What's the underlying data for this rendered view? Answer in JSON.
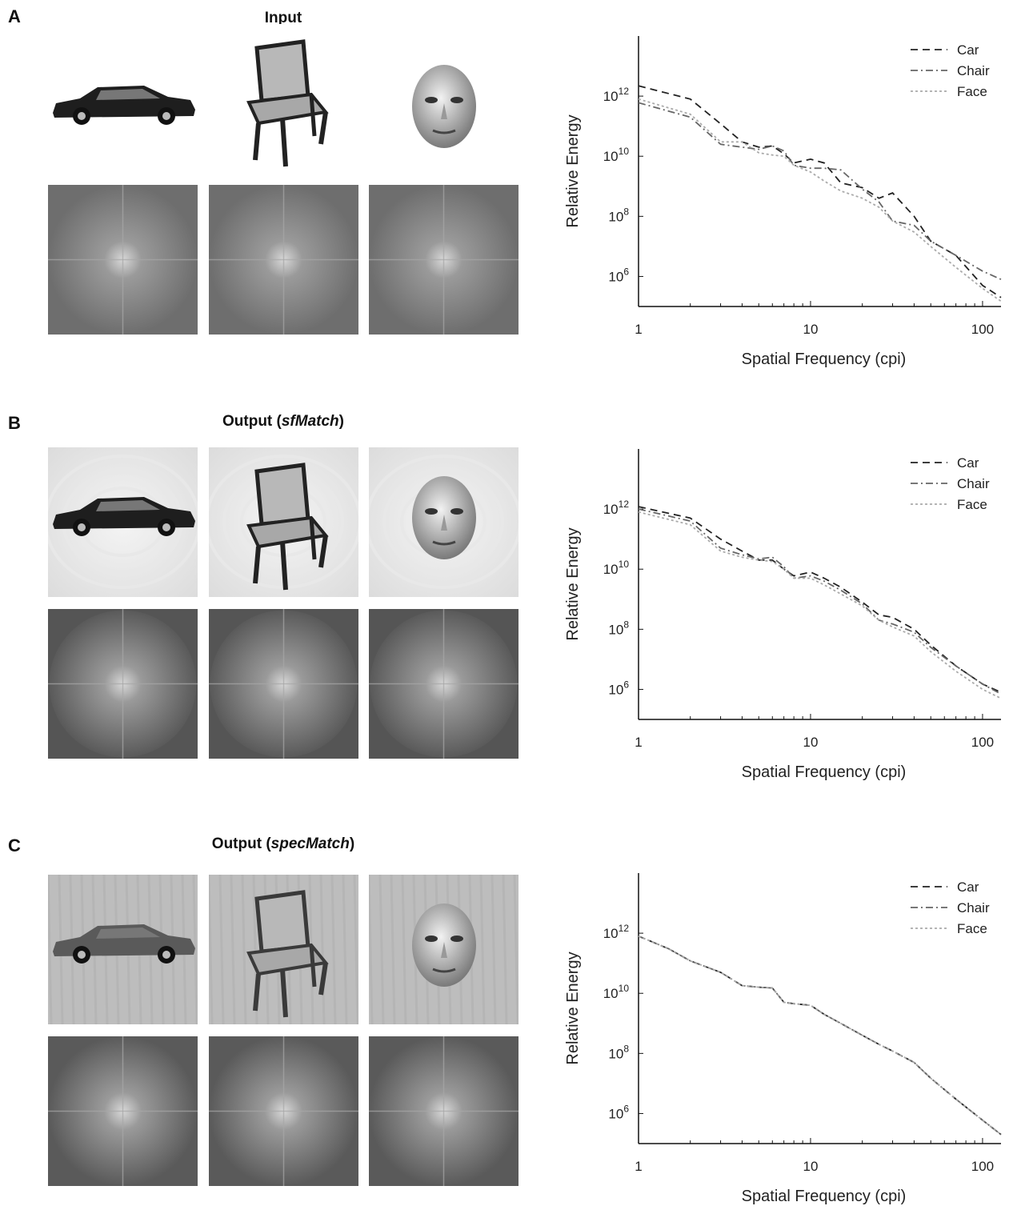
{
  "panels": [
    {
      "letter": "A",
      "title_main": "Input",
      "title_paren_open": "",
      "title_italic": "",
      "title_paren_close": "",
      "image_style": "input",
      "spectrum_style": "input",
      "images": [
        {
          "label": "car",
          "icon": "car-photo-icon"
        },
        {
          "label": "chair",
          "icon": "chair-photo-icon"
        },
        {
          "label": "face",
          "icon": "face-photo-icon"
        }
      ]
    },
    {
      "letter": "B",
      "title_main": "Output ",
      "title_paren_open": "(",
      "title_italic": "sfMatch",
      "title_paren_close": ")",
      "image_style": "sfmatch",
      "spectrum_style": "circular",
      "images": [
        {
          "label": "car",
          "icon": "car-photo-icon"
        },
        {
          "label": "chair",
          "icon": "chair-photo-icon"
        },
        {
          "label": "face",
          "icon": "face-photo-icon"
        }
      ]
    },
    {
      "letter": "C",
      "title_main": "Output ",
      "title_paren_open": "(",
      "title_italic": "specMatch",
      "title_paren_close": ")",
      "image_style": "specmatch",
      "spectrum_style": "matched",
      "images": [
        {
          "label": "car",
          "icon": "car-photo-icon"
        },
        {
          "label": "chair",
          "icon": "chair-photo-icon"
        },
        {
          "label": "face",
          "icon": "face-photo-icon"
        }
      ]
    }
  ],
  "chart_data": [
    {
      "type": "line",
      "panel": "A",
      "xlabel": "Spatial Frequency (cpi)",
      "ylabel": "Relative Energy",
      "xscale": "log",
      "yscale": "log",
      "xlim": [
        1,
        128
      ],
      "ylim": [
        100000,
        100000000000000
      ],
      "xticks": [
        {
          "value": 1,
          "label": "1"
        },
        {
          "value": 10,
          "label": "10"
        },
        {
          "value": 100,
          "label": "100"
        }
      ],
      "yticks": [
        {
          "value": 1000000,
          "base": "10",
          "exp": "6"
        },
        {
          "value": 100000000,
          "base": "10",
          "exp": "8"
        },
        {
          "value": 10000000000,
          "base": "10",
          "exp": "10"
        },
        {
          "value": 1000000000000,
          "base": "10",
          "exp": "12"
        }
      ],
      "legend_position": "top-right",
      "series": [
        {
          "name": "Car",
          "color": "#222222",
          "dash": "long-dash",
          "x": [
            1,
            2,
            3,
            4,
            5,
            6,
            7,
            8,
            10,
            12,
            15,
            20,
            25,
            30,
            40,
            50,
            70,
            100,
            128
          ],
          "y": [
            2200000000000.0,
            800000000000.0,
            120000000000.0,
            30000000000.0,
            20000000000.0,
            22000000000.0,
            12000000000.0,
            6000000000.0,
            8000000000.0,
            6000000000.0,
            1300000000.0,
            900000000.0,
            400000000.0,
            600000000.0,
            100000000.0,
            15000000.0,
            5000000.0,
            500000.0,
            200000.0
          ]
        },
        {
          "name": "Chair",
          "color": "#666666",
          "dash": "dash-dot",
          "x": [
            1,
            2,
            3,
            4,
            5,
            6,
            7,
            8,
            10,
            12,
            15,
            20,
            25,
            30,
            40,
            50,
            70,
            100,
            128
          ],
          "y": [
            600000000000.0,
            200000000000.0,
            25000000000.0,
            20000000000.0,
            17000000000.0,
            22000000000.0,
            15000000000.0,
            5000000000.0,
            4000000000.0,
            4000000000.0,
            3500000000.0,
            800000000.0,
            300000000.0,
            70000000.0,
            50000000.0,
            15000000.0,
            5000000.0,
            1500000.0,
            800000.0
          ]
        },
        {
          "name": "Face",
          "color": "#aaaaaa",
          "dash": "dot",
          "x": [
            1,
            2,
            3,
            4,
            5,
            6,
            7,
            8,
            10,
            12,
            15,
            20,
            25,
            30,
            40,
            50,
            70,
            100,
            128
          ],
          "y": [
            800000000000.0,
            250000000000.0,
            30000000000.0,
            30000000000.0,
            13000000000.0,
            11000000000.0,
            10000000000.0,
            5000000000.0,
            3000000000.0,
            1500000000.0,
            700000000.0,
            400000000.0,
            200000000.0,
            70000000.0,
            30000000.0,
            10000000.0,
            2000000.0,
            400000.0,
            150000.0
          ]
        }
      ]
    },
    {
      "type": "line",
      "panel": "B",
      "xlabel": "Spatial Frequency (cpi)",
      "ylabel": "Relative Energy",
      "xscale": "log",
      "yscale": "log",
      "xlim": [
        1,
        128
      ],
      "ylim": [
        100000,
        100000000000000
      ],
      "xticks": [
        {
          "value": 1,
          "label": "1"
        },
        {
          "value": 10,
          "label": "10"
        },
        {
          "value": 100,
          "label": "100"
        }
      ],
      "yticks": [
        {
          "value": 1000000,
          "base": "10",
          "exp": "6"
        },
        {
          "value": 100000000,
          "base": "10",
          "exp": "8"
        },
        {
          "value": 10000000000,
          "base": "10",
          "exp": "10"
        },
        {
          "value": 1000000000000,
          "base": "10",
          "exp": "12"
        }
      ],
      "legend_position": "top-right",
      "series": [
        {
          "name": "Car",
          "color": "#222222",
          "dash": "long-dash",
          "x": [
            1,
            2,
            3,
            4,
            5,
            6,
            7,
            8,
            10,
            12,
            15,
            20,
            25,
            30,
            40,
            50,
            70,
            100,
            128
          ],
          "y": [
            1200000000000.0,
            500000000000.0,
            100000000000.0,
            40000000000.0,
            20000000000.0,
            20000000000.0,
            10000000000.0,
            6000000000.0,
            8000000000.0,
            5000000000.0,
            2500000000.0,
            800000000.0,
            300000000.0,
            250000000.0,
            100000000.0,
            30000000.0,
            6000000.0,
            1500000.0,
            800000.0
          ]
        },
        {
          "name": "Chair",
          "color": "#666666",
          "dash": "dash-dot",
          "x": [
            1,
            2,
            3,
            4,
            5,
            6,
            7,
            8,
            10,
            12,
            15,
            20,
            25,
            30,
            40,
            50,
            70,
            100,
            128
          ],
          "y": [
            1000000000000.0,
            400000000000.0,
            50000000000.0,
            30000000000.0,
            22000000000.0,
            25000000000.0,
            12000000000.0,
            5000000000.0,
            6000000000.0,
            4000000000.0,
            2000000000.0,
            700000000.0,
            200000000.0,
            150000000.0,
            80000000.0,
            25000000.0,
            6000000.0,
            1500000.0,
            700000.0
          ]
        },
        {
          "name": "Face",
          "color": "#aaaaaa",
          "dash": "dot",
          "x": [
            1,
            2,
            3,
            4,
            5,
            6,
            7,
            8,
            10,
            12,
            15,
            20,
            25,
            30,
            40,
            50,
            70,
            100,
            128
          ],
          "y": [
            800000000000.0,
            300000000000.0,
            40000000000.0,
            25000000000.0,
            20000000000.0,
            18000000000.0,
            10000000000.0,
            5000000000.0,
            5000000000.0,
            3000000000.0,
            1500000000.0,
            600000000.0,
            200000000.0,
            120000000.0,
            60000000.0,
            18000000.0,
            4000000.0,
            1000000.0,
            500000.0
          ]
        }
      ]
    },
    {
      "type": "line",
      "panel": "C",
      "xlabel": "Spatial Frequency (cpi)",
      "ylabel": "Relative Energy",
      "xscale": "log",
      "yscale": "log",
      "xlim": [
        1,
        128
      ],
      "ylim": [
        100000,
        100000000000000
      ],
      "xticks": [
        {
          "value": 1,
          "label": "1"
        },
        {
          "value": 10,
          "label": "10"
        },
        {
          "value": 100,
          "label": "100"
        }
      ],
      "yticks": [
        {
          "value": 1000000,
          "base": "10",
          "exp": "6"
        },
        {
          "value": 100000000,
          "base": "10",
          "exp": "8"
        },
        {
          "value": 10000000000,
          "base": "10",
          "exp": "10"
        },
        {
          "value": 1000000000000,
          "base": "10",
          "exp": "12"
        }
      ],
      "legend_position": "top-right",
      "series": [
        {
          "name": "Car",
          "color": "#222222",
          "dash": "long-dash",
          "x": [
            1,
            1.5,
            2,
            3,
            4,
            5,
            6,
            7,
            8,
            10,
            12,
            15,
            20,
            25,
            30,
            40,
            50,
            70,
            100,
            128
          ],
          "y": [
            800000000000.0,
            300000000000.0,
            120000000000.0,
            50000000000.0,
            18000000000.0,
            16000000000.0,
            15000000000.0,
            5000000000.0,
            4500000000.0,
            4000000000.0,
            2000000000.0,
            1000000000.0,
            400000000.0,
            200000000.0,
            120000000.0,
            50000000.0,
            15000000.0,
            3000000.0,
            600000.0,
            200000.0
          ]
        },
        {
          "name": "Chair",
          "color": "#666666",
          "dash": "dash-dot",
          "x": [
            1,
            1.5,
            2,
            3,
            4,
            5,
            6,
            7,
            8,
            10,
            12,
            15,
            20,
            25,
            30,
            40,
            50,
            70,
            100,
            128
          ],
          "y": [
            800000000000.0,
            300000000000.0,
            120000000000.0,
            50000000000.0,
            18000000000.0,
            16000000000.0,
            15000000000.0,
            5000000000.0,
            4500000000.0,
            4000000000.0,
            2000000000.0,
            1000000000.0,
            400000000.0,
            200000000.0,
            120000000.0,
            50000000.0,
            15000000.0,
            3000000.0,
            600000.0,
            200000.0
          ]
        },
        {
          "name": "Face",
          "color": "#aaaaaa",
          "dash": "dot",
          "x": [
            1,
            1.5,
            2,
            3,
            4,
            5,
            6,
            7,
            8,
            10,
            12,
            15,
            20,
            25,
            30,
            40,
            50,
            70,
            100,
            128
          ],
          "y": [
            800000000000.0,
            300000000000.0,
            120000000000.0,
            50000000000.0,
            18000000000.0,
            16000000000.0,
            15000000000.0,
            5000000000.0,
            4500000000.0,
            4000000000.0,
            2000000000.0,
            1000000000.0,
            400000000.0,
            200000000.0,
            120000000.0,
            50000000.0,
            15000000.0,
            3000000.0,
            600000.0,
            200000.0
          ]
        }
      ]
    }
  ]
}
